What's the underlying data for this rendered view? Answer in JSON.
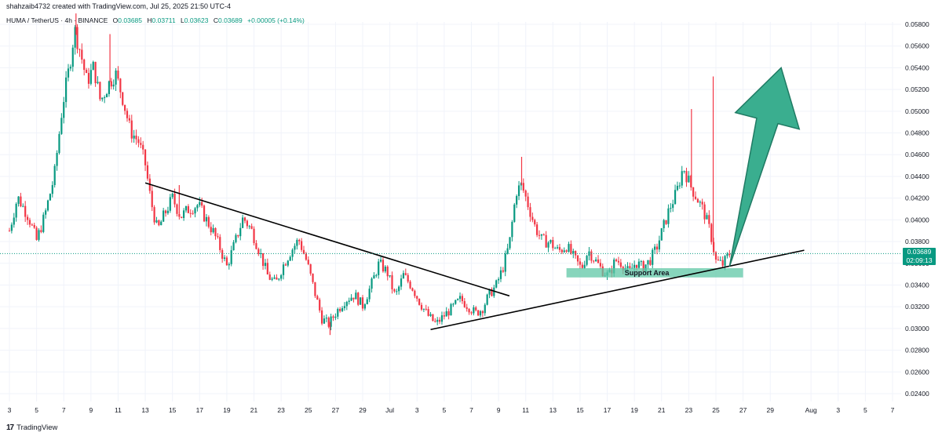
{
  "header": {
    "attribution": "shahzaib4732 created with TradingView.com, Jul 25, 2025 21:50 UTC-4",
    "symbol": "HUMA / TetherUS · 4h · BINANCE",
    "ohlc": {
      "o_label": "O",
      "o": "0.03685",
      "h_label": "H",
      "h": "0.03711",
      "l_label": "L",
      "l": "0.03623",
      "c_label": "C",
      "c": "0.03689",
      "change": "+0.00005 (+0.14%)"
    }
  },
  "footer": {
    "logo_mark": "17",
    "logo_text": "TradingView"
  },
  "last_price": {
    "price": "0.03689",
    "countdown": "02:09:13"
  },
  "colors": {
    "up": "#089981",
    "down": "#f23645",
    "support": "#5fc7a6",
    "arrow_fill": "#3aae8f",
    "arrow_stroke": "#1f7a63",
    "grid": "#f0f3fa"
  },
  "chart_data": {
    "type": "candlestick",
    "y_axis": {
      "min": 0.0232,
      "max": 0.059,
      "side": "right",
      "ticks": [
        0.058,
        0.056,
        0.054,
        0.052,
        0.05,
        0.048,
        0.046,
        0.044,
        0.042,
        0.04,
        0.038,
        0.036,
        0.034,
        0.032,
        0.03,
        0.028,
        0.026,
        0.024
      ],
      "tick_labels": [
        "0.05800",
        "0.05600",
        "0.05400",
        "0.05200",
        "0.05000",
        "0.04800",
        "0.04600",
        "0.04400",
        "0.04200",
        "0.04000",
        "0.03800",
        "0.03600",
        "0.03400",
        "0.03200",
        "0.03000",
        "0.02800",
        "0.02600",
        "0.02400"
      ]
    },
    "x_axis": {
      "day_min": 3,
      "day_max": 44,
      "ticks": [
        {
          "day": 3,
          "label": "3"
        },
        {
          "day": 5,
          "label": "5"
        },
        {
          "day": 7,
          "label": "7"
        },
        {
          "day": 9,
          "label": "9"
        },
        {
          "day": 11,
          "label": "11"
        },
        {
          "day": 13,
          "label": "13"
        },
        {
          "day": 15,
          "label": "15"
        },
        {
          "day": 17,
          "label": "17"
        },
        {
          "day": 19,
          "label": "19"
        },
        {
          "day": 21,
          "label": "21"
        },
        {
          "day": 23,
          "label": "23"
        },
        {
          "day": 25,
          "label": "25"
        },
        {
          "day": 27,
          "label": "27"
        },
        {
          "day": 29,
          "label": "29"
        },
        {
          "day": 31,
          "label": "Jul"
        },
        {
          "day": 33,
          "label": "3"
        },
        {
          "day": 35,
          "label": "5"
        },
        {
          "day": 37,
          "label": "7"
        },
        {
          "day": 39,
          "label": "9"
        },
        {
          "day": 41,
          "label": "11"
        },
        {
          "day": 43,
          "label": "13"
        },
        {
          "day": 45,
          "label": "15"
        },
        {
          "day": 47,
          "label": "17"
        },
        {
          "day": 49,
          "label": "19"
        },
        {
          "day": 51,
          "label": "21"
        },
        {
          "day": 53,
          "label": "23"
        },
        {
          "day": 55,
          "label": "25"
        },
        {
          "day": 57,
          "label": "27"
        },
        {
          "day": 59,
          "label": "29"
        },
        {
          "day": 62,
          "label": "Aug"
        },
        {
          "day": 64,
          "label": "3"
        },
        {
          "day": 66,
          "label": "5"
        },
        {
          "day": 68,
          "label": "7"
        }
      ]
    },
    "close_path": [
      [
        3.0,
        0.039
      ],
      [
        3.6,
        0.0421
      ],
      [
        4.4,
        0.0403
      ],
      [
        5.0,
        0.0381
      ],
      [
        5.6,
        0.0404
      ],
      [
        6.3,
        0.044
      ],
      [
        6.9,
        0.0505
      ],
      [
        7.4,
        0.054
      ],
      [
        7.8,
        0.0575
      ],
      [
        8.2,
        0.0556
      ],
      [
        8.7,
        0.0527
      ],
      [
        9.2,
        0.0541
      ],
      [
        9.7,
        0.0509
      ],
      [
        10.3,
        0.0525
      ],
      [
        10.8,
        0.0535
      ],
      [
        11.3,
        0.0514
      ],
      [
        11.9,
        0.0482
      ],
      [
        12.5,
        0.0472
      ],
      [
        13.0,
        0.0451
      ],
      [
        13.4,
        0.0418
      ],
      [
        13.9,
        0.039
      ],
      [
        14.4,
        0.0405
      ],
      [
        15.0,
        0.042
      ],
      [
        15.6,
        0.0403
      ],
      [
        16.2,
        0.041
      ],
      [
        16.9,
        0.0414
      ],
      [
        17.4,
        0.0402
      ],
      [
        18.0,
        0.0389
      ],
      [
        18.5,
        0.0374
      ],
      [
        19.0,
        0.0357
      ],
      [
        19.6,
        0.0379
      ],
      [
        20.2,
        0.0402
      ],
      [
        20.8,
        0.0391
      ],
      [
        21.4,
        0.0371
      ],
      [
        22.0,
        0.0349
      ],
      [
        22.6,
        0.0341
      ],
      [
        23.1,
        0.0357
      ],
      [
        23.7,
        0.0371
      ],
      [
        24.3,
        0.0382
      ],
      [
        24.9,
        0.0361
      ],
      [
        25.5,
        0.0332
      ],
      [
        26.0,
        0.0309
      ],
      [
        26.5,
        0.0304
      ],
      [
        27.1,
        0.0316
      ],
      [
        27.7,
        0.0326
      ],
      [
        28.4,
        0.0331
      ],
      [
        29.0,
        0.0321
      ],
      [
        29.6,
        0.0339
      ],
      [
        30.2,
        0.036
      ],
      [
        30.8,
        0.0352
      ],
      [
        31.4,
        0.0329
      ],
      [
        32.0,
        0.0349
      ],
      [
        32.6,
        0.0339
      ],
      [
        33.2,
        0.0324
      ],
      [
        33.8,
        0.0312
      ],
      [
        34.4,
        0.0304
      ],
      [
        35.0,
        0.0312
      ],
      [
        35.6,
        0.0319
      ],
      [
        36.2,
        0.0327
      ],
      [
        36.8,
        0.032
      ],
      [
        37.3,
        0.0314
      ],
      [
        37.8,
        0.0318
      ],
      [
        38.3,
        0.0331
      ],
      [
        38.8,
        0.0339
      ],
      [
        39.3,
        0.0355
      ],
      [
        39.8,
        0.0378
      ],
      [
        40.3,
        0.0426
      ],
      [
        40.7,
        0.0432
      ],
      [
        41.2,
        0.0413
      ],
      [
        41.7,
        0.0393
      ],
      [
        42.2,
        0.0381
      ],
      [
        42.8,
        0.0379
      ],
      [
        43.4,
        0.0371
      ],
      [
        44.0,
        0.0376
      ],
      [
        44.6,
        0.0364
      ],
      [
        45.1,
        0.0355
      ],
      [
        45.6,
        0.0372
      ],
      [
        46.1,
        0.0363
      ],
      [
        46.6,
        0.0354
      ],
      [
        47.1,
        0.0348
      ],
      [
        47.6,
        0.0363
      ],
      [
        48.1,
        0.036
      ],
      [
        48.6,
        0.0351
      ],
      [
        49.1,
        0.0361
      ],
      [
        49.6,
        0.0356
      ],
      [
        50.1,
        0.0362
      ],
      [
        50.6,
        0.0373
      ],
      [
        51.1,
        0.0392
      ],
      [
        51.6,
        0.0411
      ],
      [
        52.1,
        0.0425
      ],
      [
        52.6,
        0.0449
      ],
      [
        53.1,
        0.0432
      ],
      [
        53.6,
        0.042
      ],
      [
        54.1,
        0.0408
      ],
      [
        54.6,
        0.0388
      ],
      [
        55.0,
        0.0362
      ],
      [
        55.5,
        0.0359
      ],
      [
        56.0,
        0.0369
      ]
    ],
    "spikes": [
      {
        "day": 7.9,
        "high": 0.059
      },
      {
        "day": 10.4,
        "high": 0.0571
      },
      {
        "day": 40.7,
        "high": 0.0458
      },
      {
        "day": 53.2,
        "high": 0.0502
      },
      {
        "day": 54.8,
        "high": 0.0532
      },
      {
        "day": 15.5,
        "high": 0.0432
      },
      {
        "day": 26.6,
        "low": 0.0294
      }
    ],
    "annotations": {
      "descending_trendline": {
        "start": [
          13.0,
          0.0434
        ],
        "end": [
          39.8,
          0.033
        ]
      },
      "ascending_trendline": {
        "start": [
          34.0,
          0.0299
        ],
        "end": [
          61.5,
          0.0372
        ]
      },
      "support_area": {
        "label": "Support Area",
        "day_start": 44.0,
        "day_end": 57.0,
        "price_low": 0.0347,
        "price_high": 0.03555
      },
      "arrow": {
        "tail_day": 56.0,
        "tail_price": 0.0357,
        "tip_day": 59.8,
        "tip_price": 0.054
      },
      "last_price_line": 0.03689
    }
  }
}
